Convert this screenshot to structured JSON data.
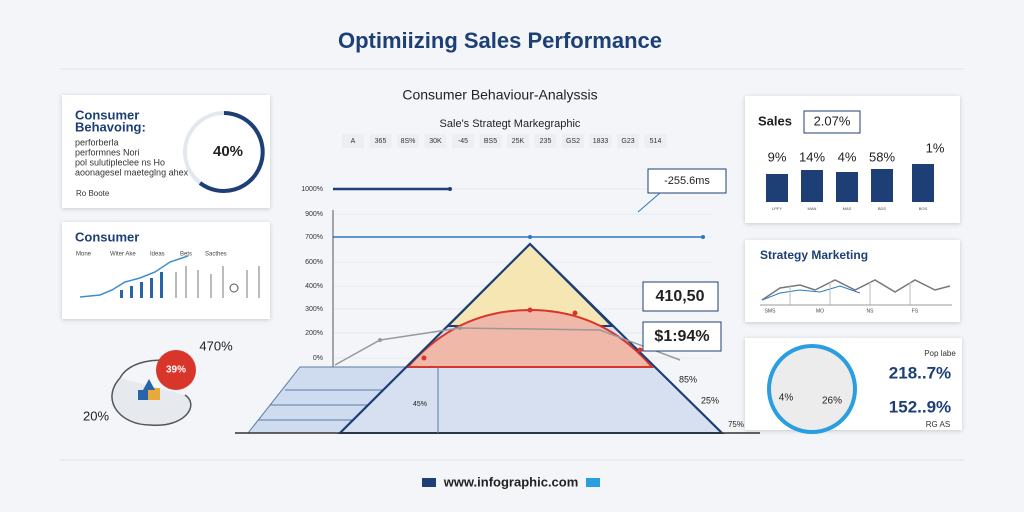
{
  "header": {
    "title": "Optimiizing Sales Performance"
  },
  "left": {
    "behavior_card": {
      "title_line1": "Consumer",
      "title_line2": "Behavoing:",
      "lines": [
        "perforberla",
        "performnes Nori",
        "pol sulutipleclee ns Ho",
        "aoonagesel maeteglng ahex"
      ],
      "note": "Ro Boote",
      "gauge_label": "40%"
    },
    "consumer_card": {
      "title": "Consumer",
      "labels": [
        "Mone",
        "Witer Ake",
        "Ideas",
        "Bets",
        "Sacthes"
      ]
    },
    "bubble": {
      "top_label": "470%",
      "badge": "39%",
      "bottom_label": "20%"
    }
  },
  "center": {
    "subtitle": "Consumer Behaviour-Analyssis",
    "caption": "Sale's Strategt Markegraphic",
    "tags": [
      "A",
      "365",
      "8S%",
      "30K",
      "-45",
      "BS5",
      "25K",
      "235",
      "GS2",
      "1833",
      "G23",
      "514"
    ],
    "axis_labels": [
      "1000%",
      "900%",
      "700%",
      "600%",
      "400%",
      "300%",
      "200%",
      "0%"
    ],
    "callouts": {
      "top": "-255.6ms",
      "middle": "410,50",
      "lower": "$1:94%"
    },
    "labels": {
      "a": "85%",
      "b": "25%",
      "c": "45%",
      "d": "75%"
    }
  },
  "right": {
    "sales_card": {
      "title": "Sales",
      "badge": "2.07%",
      "bar_labels": [
        "9%",
        "14%",
        "4%",
        "58%",
        "1%"
      ],
      "bar_captions": [
        "LPFY",
        "MAN",
        "MAS",
        "BDS",
        "BOS"
      ]
    },
    "strategy_card": {
      "title": "Strategy Marketing",
      "captions": [
        "SMS",
        "MO",
        "NS",
        "FS"
      ]
    },
    "donut_card": {
      "note": "Pop labe",
      "ring_left": "4%",
      "ring_right": "26%",
      "value1": "218..7%",
      "value2": "152..9%",
      "footnote": "RG AS"
    }
  },
  "footer": {
    "url": "www.infographic.com"
  }
}
